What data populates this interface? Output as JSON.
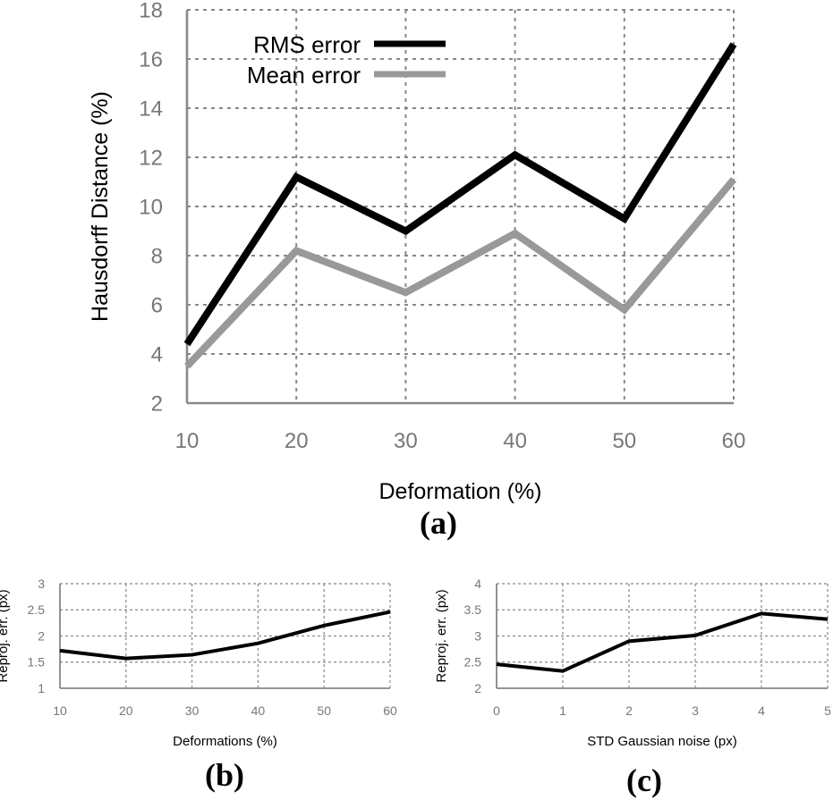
{
  "chart_data": [
    {
      "type": "line",
      "panel_label": "(a)",
      "title": "",
      "xlabel": "Deformation   (%)",
      "ylabel": "Hausdorff Distance (%)",
      "x": [
        10,
        20,
        30,
        40,
        50,
        60
      ],
      "xlim": [
        10,
        60
      ],
      "ylim": [
        2,
        18
      ],
      "xticks": [
        "10",
        "20",
        "30",
        "40",
        "50",
        "60"
      ],
      "yticks": [
        "2",
        "4",
        "6",
        "8",
        "10",
        "12",
        "14",
        "16",
        "18"
      ],
      "grid": true,
      "legend_position": "top-left",
      "series": [
        {
          "name": "RMS error",
          "color": "#000000",
          "values": [
            4.4,
            11.2,
            9.0,
            12.1,
            9.5,
            16.6
          ]
        },
        {
          "name": "Mean error",
          "color": "#999999",
          "values": [
            3.5,
            8.2,
            6.5,
            8.9,
            5.8,
            11.1
          ]
        }
      ]
    },
    {
      "type": "line",
      "panel_label": "(b)",
      "title": "",
      "xlabel": "Deformations (%)",
      "ylabel": "Reproj. err. (px)",
      "x": [
        10,
        20,
        30,
        40,
        50,
        60
      ],
      "xlim": [
        10,
        60
      ],
      "ylim": [
        1,
        3
      ],
      "xticks": [
        "10",
        "20",
        "30",
        "40",
        "50",
        "60"
      ],
      "yticks": [
        "1",
        "1.5",
        "2",
        "2.5",
        "3"
      ],
      "grid": true,
      "series": [
        {
          "color": "#000000",
          "values": [
            1.72,
            1.57,
            1.64,
            1.86,
            2.2,
            2.46
          ]
        }
      ]
    },
    {
      "type": "line",
      "panel_label": "(c)",
      "title": "",
      "xlabel": "STD Gaussian noise (px)",
      "ylabel": "Reproj. err. (px)",
      "x": [
        0,
        1,
        2,
        3,
        4,
        5
      ],
      "xlim": [
        0,
        5
      ],
      "ylim": [
        2,
        4
      ],
      "xticks": [
        "0",
        "1",
        "2",
        "3",
        "4",
        "5"
      ],
      "yticks": [
        "2",
        "2.5",
        "3",
        "3.5",
        "4"
      ],
      "grid": true,
      "series": [
        {
          "color": "#000000",
          "values": [
            2.46,
            2.33,
            2.9,
            3.01,
            3.43,
            3.32
          ]
        }
      ]
    }
  ]
}
